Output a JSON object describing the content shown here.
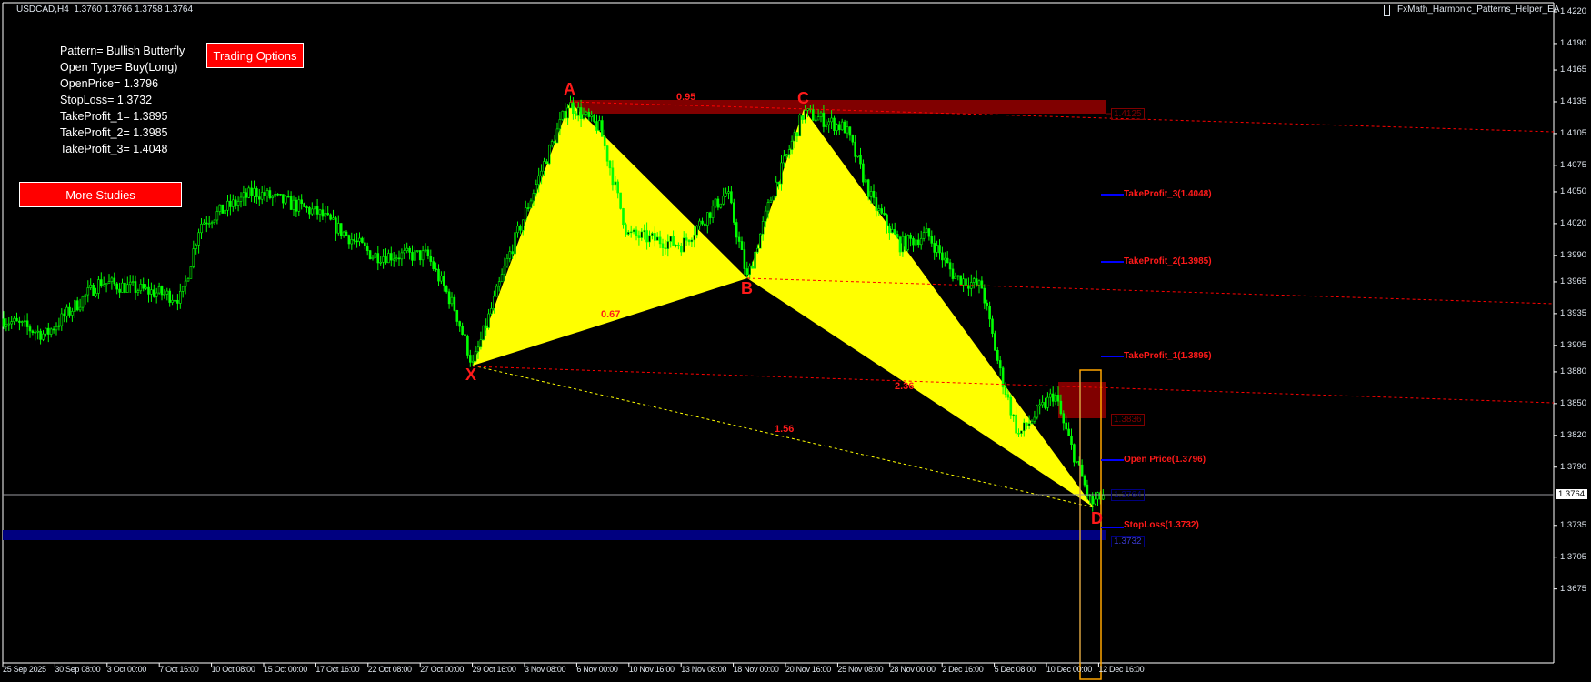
{
  "header": {
    "symbol_line": "USDCAD,H4  1.3760 1.3766 1.3758 1.3764",
    "ea_name": "FxMath_Harmonic_Patterns_Helper_EA"
  },
  "info": {
    "pattern": "Pattern= Bullish Butterfly",
    "open_type": "Open Type= Buy(Long)",
    "open_price": "OpenPrice= 1.3796",
    "stop_loss": "StopLoss= 1.3732",
    "tp1": "TakeProfit_1= 1.3895",
    "tp2": "TakeProfit_2= 1.3985",
    "tp3": "TakeProfit_3= 1.4048"
  },
  "buttons": {
    "trading_options": "Trading Options",
    "more_studies": "More Studies"
  },
  "levels": {
    "tp3": "TakeProfit_3(1.4048)",
    "tp2": "TakeProfit_2(1.3985)",
    "tp1": "TakeProfit_1(1.3895)",
    "open": "Open Price(1.3796)",
    "sl": "StopLoss(1.3732)"
  },
  "price_boxes": {
    "top_zone": "1.4125",
    "d_zone": "1.3836",
    "current": "1.3764",
    "sl_box": "1.3732"
  },
  "pattern_points": {
    "x": "X",
    "a": "A",
    "b": "B",
    "c": "C",
    "d": "D"
  },
  "ratios": {
    "ab": "0.95",
    "xb": "0.67",
    "bd": "2.36",
    "xd": "1.56"
  },
  "current_price": "1.3764",
  "y_axis": [
    "1.4220",
    "1.4190",
    "1.4165",
    "1.4135",
    "1.4105",
    "1.4075",
    "1.4050",
    "1.4020",
    "1.3990",
    "1.3965",
    "1.3935",
    "1.3905",
    "1.3880",
    "1.3850",
    "1.3820",
    "1.3790",
    "1.3735",
    "1.3705",
    "1.3675"
  ],
  "x_axis": [
    "25 Sep 2025",
    "30 Sep 08:00",
    "3 Oct 00:00",
    "7 Oct 16:00",
    "10 Oct 08:00",
    "15 Oct 00:00",
    "17 Oct 16:00",
    "22 Oct 08:00",
    "27 Oct 00:00",
    "29 Oct 16:00",
    "3 Nov 08:00",
    "6 Nov 00:00",
    "10 Nov 16:00",
    "13 Nov 08:00",
    "18 Nov 00:00",
    "20 Nov 16:00",
    "25 Nov 08:00",
    "28 Nov 00:00",
    "2 Dec 16:00",
    "5 Dec 08:00",
    "10 Dec 00:00",
    "12 Dec 16:00"
  ],
  "colors": {
    "bull_candle": "#00ff00",
    "pattern_fill": "#ffff00",
    "zone": "#800000",
    "stop_band": "#000080",
    "accent": "#ff0000",
    "tp_line": "#0000ff",
    "time_box": "#ffa500"
  }
}
